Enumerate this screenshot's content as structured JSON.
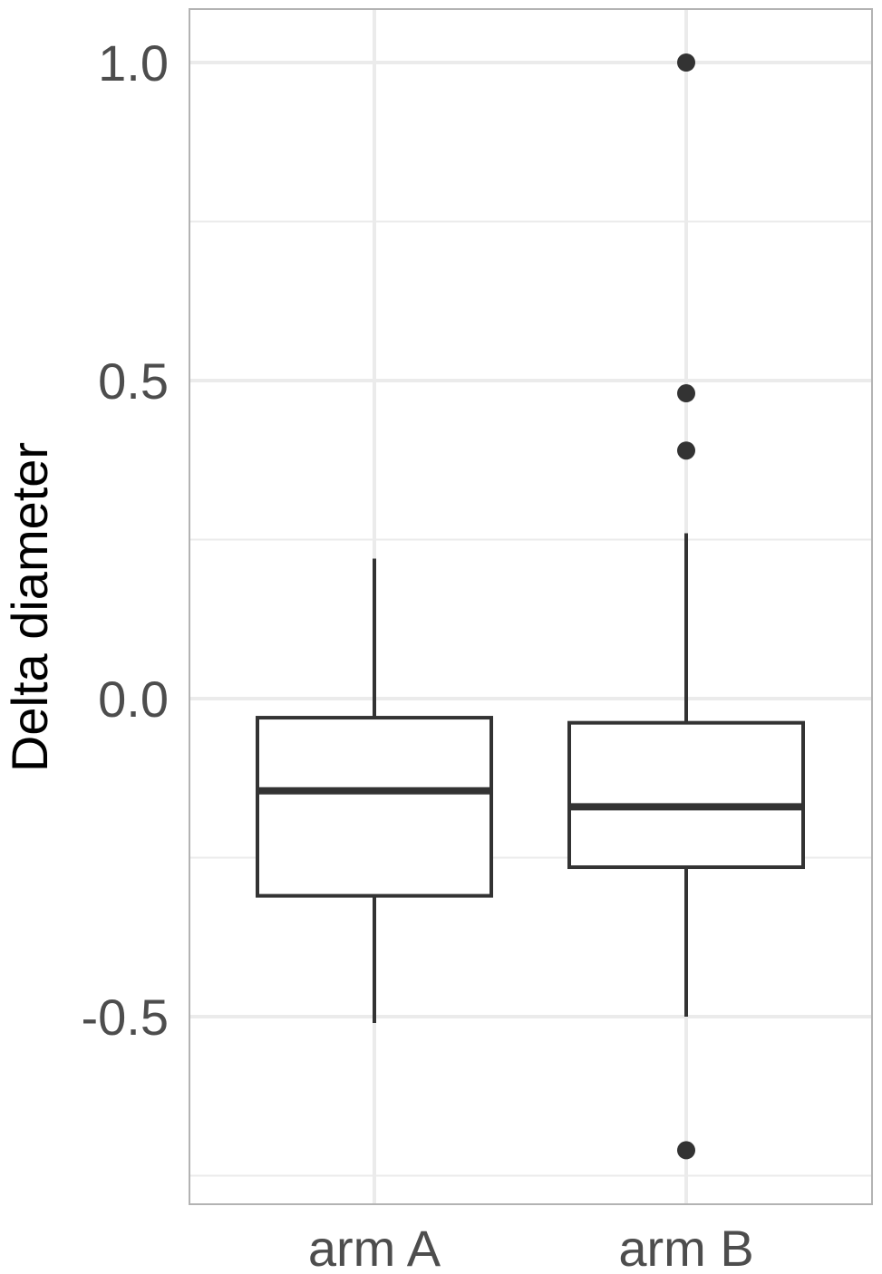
{
  "chart_data": {
    "type": "boxplot",
    "title": "",
    "xlabel": "",
    "ylabel": "Delta diameter",
    "ylim": [
      -0.75,
      1.09
    ],
    "y_ticks": [
      -0.5,
      0.0,
      0.5,
      1.0
    ],
    "y_tick_labels": [
      "-0.5",
      "0.0",
      "0.5",
      "1.0"
    ],
    "y_minor_ticks": [
      -0.75,
      -0.25,
      0.25,
      0.75
    ],
    "categories": [
      "arm A",
      "arm B"
    ],
    "grid": true,
    "legend": "none",
    "colors": {
      "box_stroke": "#333333",
      "box_fill": "#ffffff",
      "grid": "#ebebeb",
      "panel_border": "#b3b3b3",
      "tick_label": "#4d4d4d",
      "axis_title": "#000000"
    },
    "boxes": [
      {
        "category": "arm A",
        "whisker_low": -0.51,
        "q1": -0.31,
        "median": -0.145,
        "q3": -0.03,
        "whisker_high": 0.22,
        "outliers": []
      },
      {
        "category": "arm B",
        "whisker_low": -0.5,
        "q1": -0.265,
        "median": -0.17,
        "q3": -0.038,
        "whisker_high": 0.26,
        "outliers": [
          1.0,
          0.48,
          0.39,
          -0.71
        ]
      }
    ]
  }
}
